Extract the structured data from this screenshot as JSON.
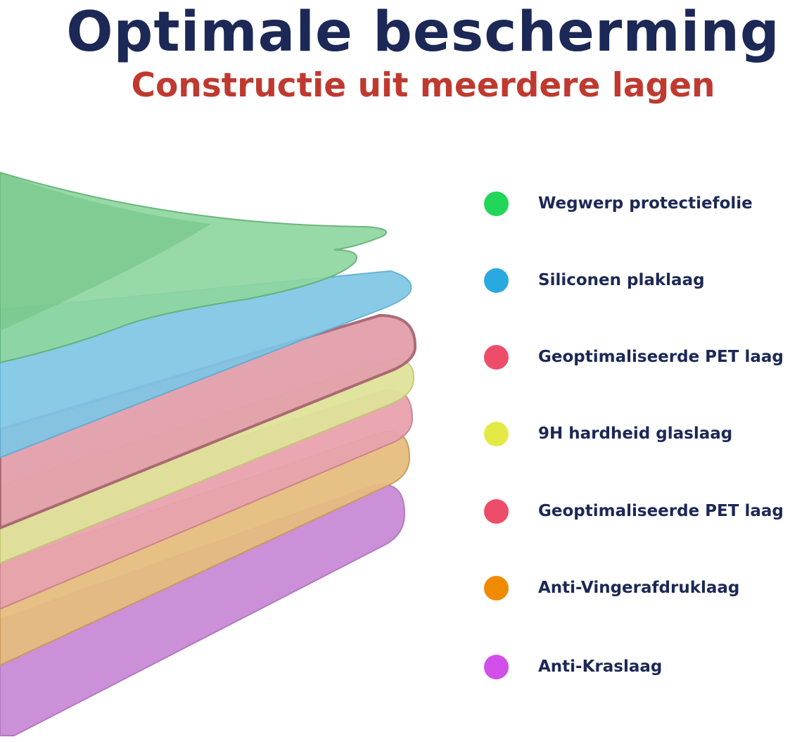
{
  "header": {
    "title": "Optimale bescherming",
    "subtitle": "Constructie uit meerdere lagen"
  },
  "colors": {
    "title": "#1c2856",
    "subtitle": "#c0392f"
  },
  "legend": [
    {
      "label": "Wegwerp protectiefolie",
      "color": "#22d65a"
    },
    {
      "label": "Siliconen plaklaag",
      "color": "#2aa9e0"
    },
    {
      "label": "Geoptimaliseerde PET laag",
      "color": "#ee4d69"
    },
    {
      "label": "9H hardheid glaslaag",
      "color": "#e3ea45"
    },
    {
      "label": "Geoptimaliseerde PET laag",
      "color": "#ee4d69"
    },
    {
      "label": "Anti-Vingerafdruklaag",
      "color": "#f08b00"
    },
    {
      "label": "Anti-Kraslaag",
      "color": "#d14ee9"
    }
  ]
}
